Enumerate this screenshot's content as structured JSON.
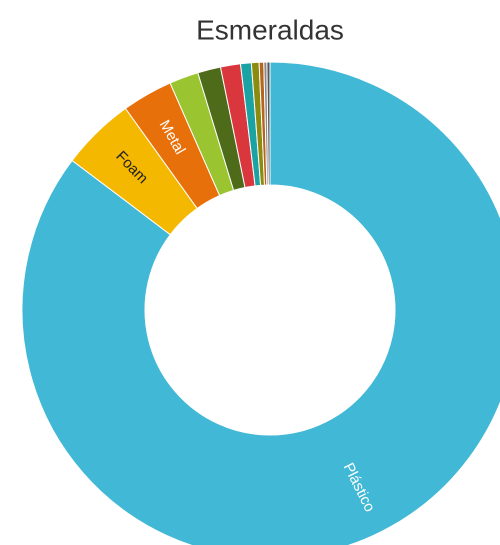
{
  "chart_data": {
    "type": "donut",
    "title": "Esmeraldas",
    "categories": [
      "Plástico",
      "Foam",
      "Metal",
      null,
      null,
      null,
      null,
      null,
      null,
      null,
      null
    ],
    "values": [
      85.3,
      4.8,
      3.3,
      1.9,
      1.5,
      1.3,
      0.7,
      0.5,
      0.3,
      0.2,
      0.2
    ],
    "colors": [
      "#41b8d5",
      "#f5b800",
      "#e8700a",
      "#9bc431",
      "#4e6b1a",
      "#d9363e",
      "#1ba3a3",
      "#8b8b10",
      "#b5651d",
      "#888888",
      "#555555"
    ]
  }
}
